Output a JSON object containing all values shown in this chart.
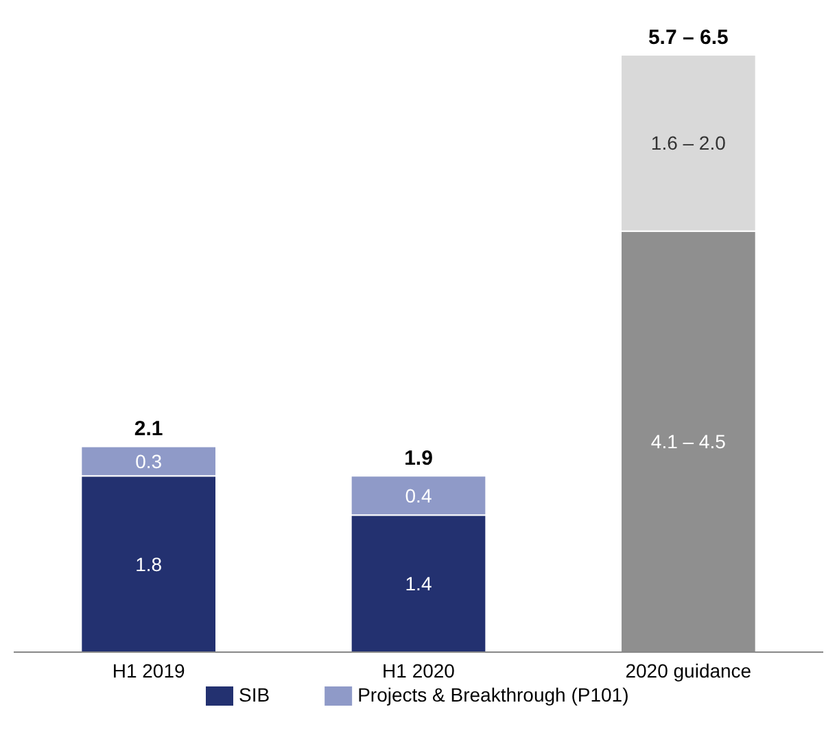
{
  "chart_data": {
    "type": "bar",
    "stacked": true,
    "categories": [
      "H1 2019",
      "H1 2020",
      "2020 guidance"
    ],
    "series": [
      {
        "name": "SIB",
        "color": "#233170",
        "colors": [
          "#233170",
          "#233170",
          "#8f8f8f"
        ],
        "values": [
          1.8,
          1.4,
          4.3
        ],
        "value_labels": [
          "1.8",
          "1.4",
          null
        ]
      },
      {
        "name": "Projects & Breakthrough (P101)",
        "color": "#8f9ac8",
        "colors": [
          "#8f9ac8",
          "#8f9ac8",
          "#d9d9d9"
        ],
        "values": [
          0.3,
          0.4,
          1.8
        ],
        "value_labels": [
          "0.3",
          "0.4",
          null
        ]
      }
    ],
    "annotations": [
      "4.1 – 4.5",
      "1.6 – 2.0"
    ],
    "totals": [
      "2.1",
      "1.9",
      "5.7 – 6.5"
    ],
    "legend": "bottom"
  }
}
